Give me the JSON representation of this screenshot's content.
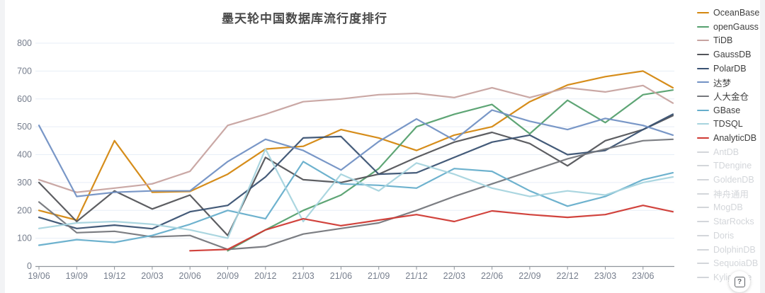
{
  "chart": {
    "title": "墨天轮中国数据库流行度排行"
  },
  "chart_data": {
    "type": "line",
    "title": "墨天轮中国数据库流行度排行",
    "xlabel": "",
    "ylabel": "",
    "ylim": [
      0,
      800
    ],
    "y_ticks": [
      0,
      100,
      200,
      300,
      400,
      500,
      600,
      700,
      800
    ],
    "grid": "horizontal-only",
    "legend_position": "right",
    "x_resolution_note": "quarterly ticks, values estimated from gridlines",
    "categories": [
      "19/06",
      "19/09",
      "19/12",
      "20/03",
      "20/06",
      "20/09",
      "20/12",
      "21/03",
      "21/06",
      "21/09",
      "21/12",
      "22/03",
      "22/06",
      "22/09",
      "22/12",
      "23/03",
      "23/06",
      ""
    ],
    "series": [
      {
        "name": "OceanBase",
        "color": "#d4870f",
        "values": [
          200,
          165,
          450,
          265,
          268,
          330,
          420,
          430,
          490,
          460,
          415,
          470,
          500,
          590,
          650,
          680,
          700,
          640
        ]
      },
      {
        "name": "openGauss",
        "color": "#55a06e",
        "values": [
          null,
          null,
          null,
          null,
          null,
          55,
          130,
          200,
          255,
          350,
          500,
          545,
          580,
          475,
          595,
          515,
          615,
          632
        ]
      },
      {
        "name": "TiDB",
        "color": "#c7a3a0",
        "values": [
          310,
          265,
          280,
          295,
          340,
          505,
          545,
          590,
          600,
          615,
          620,
          605,
          640,
          605,
          640,
          625,
          648,
          585
        ]
      },
      {
        "name": "GaussDB",
        "color": "#54555a",
        "values": [
          300,
          160,
          270,
          205,
          255,
          110,
          390,
          310,
          300,
          330,
          390,
          445,
          480,
          440,
          360,
          450,
          490,
          540
        ]
      },
      {
        "name": "PolarDB",
        "color": "#3a5272",
        "values": [
          175,
          135,
          147,
          134,
          195,
          218,
          320,
          460,
          465,
          330,
          335,
          390,
          445,
          470,
          400,
          415,
          490,
          545
        ]
      },
      {
        "name": "达梦",
        "color": "#7291c4",
        "values": [
          505,
          250,
          265,
          270,
          270,
          375,
          455,
          415,
          345,
          447,
          528,
          452,
          560,
          520,
          490,
          530,
          505,
          470
        ]
      },
      {
        "name": "人大金仓",
        "color": "#75777c",
        "values": [
          230,
          120,
          125,
          105,
          110,
          60,
          70,
          115,
          135,
          155,
          200,
          250,
          295,
          340,
          385,
          420,
          450,
          455
        ]
      },
      {
        "name": "GBase",
        "color": "#66aecb",
        "values": [
          75,
          95,
          85,
          110,
          150,
          200,
          170,
          375,
          295,
          290,
          280,
          350,
          340,
          270,
          215,
          250,
          310,
          335
        ]
      },
      {
        "name": "TDSQL",
        "color": "#a7d4de",
        "values": [
          135,
          155,
          160,
          150,
          130,
          100,
          420,
          160,
          330,
          270,
          370,
          330,
          280,
          250,
          270,
          255,
          300,
          320
        ]
      },
      {
        "name": "AnalyticDB",
        "color": "#cf3933",
        "values": [
          null,
          null,
          null,
          null,
          55,
          60,
          130,
          170,
          145,
          165,
          185,
          160,
          198,
          185,
          175,
          185,
          218,
          195
        ]
      }
    ],
    "axis_style": {
      "grid_color": "#e7eef7",
      "axis_line_color": "#8f959c",
      "tick_label_color": "#767e8d"
    }
  },
  "legend": {
    "disabled_color": "#d3d6da",
    "items": [
      {
        "label": "OceanBase",
        "color": "#d4870f",
        "active": true
      },
      {
        "label": "openGauss",
        "color": "#55a06e",
        "active": true
      },
      {
        "label": "TiDB",
        "color": "#c7a3a0",
        "active": true
      },
      {
        "label": "GaussDB",
        "color": "#54555a",
        "active": true
      },
      {
        "label": "PolarDB",
        "color": "#3a5272",
        "active": true
      },
      {
        "label": "达梦",
        "color": "#7291c4",
        "active": true
      },
      {
        "label": "人大金仓",
        "color": "#75777c",
        "active": true
      },
      {
        "label": "GBase",
        "color": "#66aecb",
        "active": true
      },
      {
        "label": "TDSQL",
        "color": "#a7d4de",
        "active": true
      },
      {
        "label": "AnalyticDB",
        "color": "#cf3933",
        "active": true
      },
      {
        "label": "AntDB",
        "color": "#d3d6da",
        "active": false
      },
      {
        "label": "TDengine",
        "color": "#d3d6da",
        "active": false
      },
      {
        "label": "GoldenDB",
        "color": "#d3d6da",
        "active": false
      },
      {
        "label": "神舟通用",
        "color": "#d3d6da",
        "active": false
      },
      {
        "label": "MogDB",
        "color": "#d3d6da",
        "active": false
      },
      {
        "label": "StarRocks",
        "color": "#d3d6da",
        "active": false
      },
      {
        "label": "Doris",
        "color": "#d3d6da",
        "active": false
      },
      {
        "label": "DolphinDB",
        "color": "#d3d6da",
        "active": false
      },
      {
        "label": "SequoiaDB",
        "color": "#d3d6da",
        "active": false
      },
      {
        "label": "Kyligence",
        "color": "#d3d6da",
        "active": false
      }
    ]
  },
  "help_button": {
    "glyph": "?"
  }
}
